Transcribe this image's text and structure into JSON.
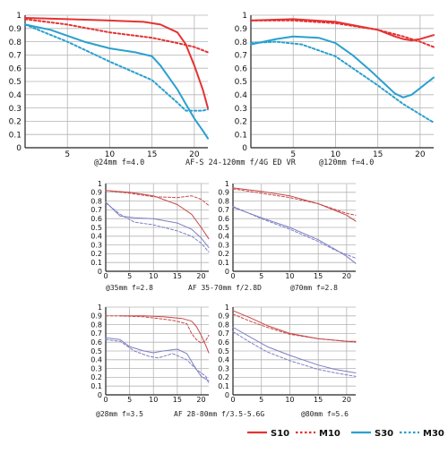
{
  "colors": {
    "s10": "#e53232",
    "s30": "#2aa0cf",
    "grid": "#b4b4b4",
    "axis": "#222222",
    "lightS10": "#c84848",
    "lightS30": "#7b7fc4"
  },
  "captions": {
    "top_left": "@24mm f=4.0",
    "top_mid": "AF-S 24-120mm f/4G ED VR",
    "top_right": "@120mm f=4.0",
    "mid_left": "@35mm f=2.8",
    "mid_mid": "AF 35-70mm f/2.8D",
    "mid_right": "@70mm f=2.8",
    "bot_left": "@28mm f=3.5",
    "bot_mid": "AF 28-80mm f/3.5-5.6G",
    "bot_right": "@80mm f=5.6"
  },
  "legend": [
    {
      "label": "S10",
      "style": "solid",
      "color": "#e53232"
    },
    {
      "label": "M10",
      "style": "dotted",
      "color": "#e53232"
    },
    {
      "label": "S30",
      "style": "solid",
      "color": "#2aa0cf"
    },
    {
      "label": "M30",
      "style": "dotted",
      "color": "#2aa0cf"
    }
  ],
  "chart_data": [
    {
      "type": "line",
      "ylim": [
        0,
        1
      ],
      "xlim": [
        0,
        21.6
      ],
      "x_ticks": [
        5,
        10,
        15,
        20
      ],
      "y_ticks": [
        0,
        0.1,
        0.2,
        0.3,
        0.4,
        0.5,
        0.6,
        0.7,
        0.8,
        0.9,
        1
      ],
      "series": [
        {
          "name": "S10",
          "x": [
            0,
            5,
            10,
            14,
            16,
            18,
            19,
            20,
            21,
            21.6
          ],
          "values": [
            0.98,
            0.97,
            0.96,
            0.95,
            0.93,
            0.87,
            0.78,
            0.62,
            0.44,
            0.3
          ]
        },
        {
          "name": "M10",
          "x": [
            0,
            5,
            10,
            15,
            18,
            20,
            21.6
          ],
          "values": [
            0.97,
            0.93,
            0.87,
            0.83,
            0.79,
            0.76,
            0.72
          ]
        },
        {
          "name": "S30",
          "x": [
            0,
            3,
            7,
            10,
            13,
            15,
            16,
            18,
            19,
            20,
            21,
            21.6
          ],
          "values": [
            0.93,
            0.89,
            0.8,
            0.75,
            0.72,
            0.69,
            0.62,
            0.44,
            0.33,
            0.22,
            0.13,
            0.07
          ]
        },
        {
          "name": "M30",
          "x": [
            0,
            5,
            10,
            15,
            18,
            19,
            21,
            21.6
          ],
          "values": [
            0.93,
            0.8,
            0.65,
            0.51,
            0.34,
            0.28,
            0.28,
            0.29
          ]
        }
      ]
    },
    {
      "type": "line",
      "ylim": [
        0,
        1
      ],
      "xlim": [
        0,
        21.6
      ],
      "x_ticks": [
        5,
        10,
        15,
        20
      ],
      "y_ticks": [
        0,
        0.1,
        0.2,
        0.3,
        0.4,
        0.5,
        0.6,
        0.7,
        0.8,
        0.9,
        1
      ],
      "series": [
        {
          "name": "S10",
          "x": [
            0,
            5,
            10,
            15,
            17,
            18,
            19,
            20,
            21.6
          ],
          "values": [
            0.96,
            0.97,
            0.95,
            0.89,
            0.84,
            0.82,
            0.81,
            0.82,
            0.85
          ]
        },
        {
          "name": "M10",
          "x": [
            0,
            5,
            10,
            15,
            18,
            20,
            21.6
          ],
          "values": [
            0.96,
            0.96,
            0.94,
            0.89,
            0.84,
            0.8,
            0.76
          ]
        },
        {
          "name": "S30",
          "x": [
            0,
            3,
            5,
            8,
            10,
            12,
            14,
            16,
            17,
            18,
            19,
            20,
            21,
            21.6
          ],
          "values": [
            0.78,
            0.82,
            0.84,
            0.83,
            0.79,
            0.7,
            0.59,
            0.47,
            0.41,
            0.38,
            0.4,
            0.45,
            0.5,
            0.53
          ]
        },
        {
          "name": "M30",
          "x": [
            0,
            3,
            6,
            10,
            15,
            18,
            21.6
          ],
          "values": [
            0.79,
            0.8,
            0.78,
            0.69,
            0.47,
            0.33,
            0.19
          ]
        }
      ]
    },
    {
      "type": "line",
      "ylim": [
        0,
        1
      ],
      "xlim": [
        0,
        21.6
      ],
      "x_ticks": [
        0,
        5,
        10,
        15,
        20
      ],
      "y_ticks": [
        0,
        0.1,
        0.2,
        0.3,
        0.4,
        0.5,
        0.6,
        0.7,
        0.8,
        0.9,
        1
      ],
      "series": [
        {
          "name": "S10",
          "x": [
            0,
            5,
            10,
            15,
            18,
            20,
            21.6
          ],
          "values": [
            0.92,
            0.9,
            0.86,
            0.76,
            0.65,
            0.5,
            0.37
          ]
        },
        {
          "name": "M10",
          "x": [
            0,
            5,
            10,
            15,
            18,
            20,
            21.6
          ],
          "values": [
            0.92,
            0.89,
            0.85,
            0.84,
            0.86,
            0.82,
            0.75
          ]
        },
        {
          "name": "S30",
          "x": [
            0,
            3,
            6,
            10,
            15,
            18,
            20,
            21.6
          ],
          "values": [
            0.79,
            0.63,
            0.61,
            0.6,
            0.55,
            0.48,
            0.38,
            0.27
          ]
        },
        {
          "name": "M30",
          "x": [
            0,
            3,
            6,
            10,
            15,
            18,
            20,
            21.6
          ],
          "values": [
            0.78,
            0.65,
            0.56,
            0.53,
            0.46,
            0.4,
            0.32,
            0.22
          ]
        }
      ]
    },
    {
      "type": "line",
      "ylim": [
        0,
        1
      ],
      "xlim": [
        0,
        21.6
      ],
      "x_ticks": [
        0,
        5,
        10,
        15,
        20
      ],
      "y_ticks": [
        0,
        0.1,
        0.2,
        0.3,
        0.4,
        0.5,
        0.6,
        0.7,
        0.8,
        0.9,
        1
      ],
      "series": [
        {
          "name": "S10",
          "x": [
            0,
            5,
            10,
            15,
            20,
            21.6
          ],
          "values": [
            0.95,
            0.91,
            0.86,
            0.77,
            0.64,
            0.57
          ]
        },
        {
          "name": "M10",
          "x": [
            0,
            5,
            10,
            15,
            20,
            21.6
          ],
          "values": [
            0.94,
            0.89,
            0.84,
            0.77,
            0.66,
            0.64
          ]
        },
        {
          "name": "S30",
          "x": [
            0,
            5,
            10,
            15,
            18,
            20,
            21.6
          ],
          "values": [
            0.73,
            0.61,
            0.5,
            0.36,
            0.25,
            0.17,
            0.09
          ]
        },
        {
          "name": "M30",
          "x": [
            0,
            5,
            10,
            15,
            18,
            20,
            21.6
          ],
          "values": [
            0.74,
            0.6,
            0.48,
            0.34,
            0.24,
            0.19,
            0.15
          ]
        }
      ]
    },
    {
      "type": "line",
      "ylim": [
        0,
        1
      ],
      "xlim": [
        0,
        21.6
      ],
      "x_ticks": [
        0,
        5,
        10,
        15,
        20
      ],
      "y_ticks": [
        0,
        0.1,
        0.2,
        0.3,
        0.4,
        0.5,
        0.6,
        0.7,
        0.8,
        0.9,
        1
      ],
      "series": [
        {
          "name": "S10",
          "x": [
            3,
            8,
            12,
            16,
            18,
            19,
            20,
            21,
            21.6
          ],
          "values": [
            0.9,
            0.9,
            0.89,
            0.87,
            0.84,
            0.78,
            0.68,
            0.56,
            0.48
          ]
        },
        {
          "name": "M10",
          "x": [
            0,
            3,
            8,
            14,
            17,
            18,
            19,
            20,
            21,
            21.6
          ],
          "values": [
            0.9,
            0.9,
            0.89,
            0.85,
            0.81,
            0.7,
            0.63,
            0.59,
            0.62,
            0.68
          ]
        },
        {
          "name": "S30",
          "x": [
            0,
            3,
            5,
            8,
            10,
            12,
            15,
            17,
            19,
            20,
            21,
            21.6
          ],
          "values": [
            0.65,
            0.63,
            0.55,
            0.5,
            0.48,
            0.5,
            0.52,
            0.47,
            0.29,
            0.21,
            0.18,
            0.16
          ]
        },
        {
          "name": "M30",
          "x": [
            0,
            3,
            6,
            9,
            11,
            14,
            17,
            19,
            21,
            21.6
          ],
          "values": [
            0.63,
            0.61,
            0.5,
            0.44,
            0.42,
            0.47,
            0.4,
            0.29,
            0.21,
            0.13
          ]
        }
      ]
    },
    {
      "type": "line",
      "ylim": [
        0,
        1
      ],
      "xlim": [
        0,
        21.6
      ],
      "x_ticks": [
        0,
        5,
        10,
        15,
        20
      ],
      "y_ticks": [
        0,
        0.1,
        0.2,
        0.3,
        0.4,
        0.5,
        0.6,
        0.7,
        0.8,
        0.9,
        1
      ],
      "series": [
        {
          "name": "S10",
          "x": [
            0,
            3,
            6,
            10,
            15,
            20,
            21.6
          ],
          "values": [
            0.96,
            0.88,
            0.79,
            0.7,
            0.64,
            0.61,
            0.61
          ]
        },
        {
          "name": "M10",
          "x": [
            0,
            3,
            6,
            10,
            15,
            20,
            21.6
          ],
          "values": [
            0.92,
            0.84,
            0.77,
            0.69,
            0.64,
            0.61,
            0.6
          ]
        },
        {
          "name": "S30",
          "x": [
            0,
            3,
            6,
            10,
            15,
            18,
            21.6
          ],
          "values": [
            0.77,
            0.66,
            0.55,
            0.45,
            0.34,
            0.29,
            0.25
          ]
        },
        {
          "name": "M30",
          "x": [
            0,
            3,
            6,
            10,
            15,
            18,
            21.6
          ],
          "values": [
            0.72,
            0.6,
            0.49,
            0.39,
            0.29,
            0.25,
            0.21
          ]
        }
      ]
    }
  ]
}
